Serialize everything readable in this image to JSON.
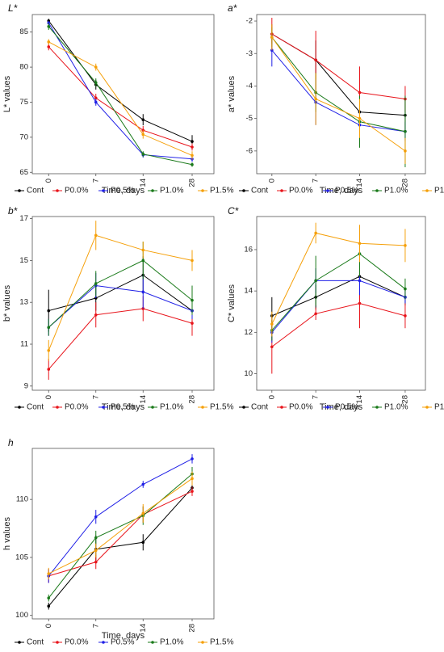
{
  "figure": {
    "x_categories": [
      "0",
      "7",
      "14",
      "28"
    ],
    "x_label": "Time, days",
    "legend": [
      {
        "name": "Cont",
        "color": "#000000"
      },
      {
        "name": "P0.0%",
        "color": "#e8141b"
      },
      {
        "name": "P0.5%",
        "color": "#1f1fe6"
      },
      {
        "name": "P1.0%",
        "color": "#1a7a1a"
      },
      {
        "name": "P1.5%",
        "color": "#f5a00a"
      }
    ]
  },
  "chart_data": [
    {
      "type": "line",
      "panel_label": "L*",
      "ylabel": "L* values",
      "xlabel": "Time, days",
      "categories": [
        "0",
        "7",
        "14",
        "28"
      ],
      "ylim": [
        64.8,
        87.5
      ],
      "yticks": [
        65,
        70,
        75,
        80,
        85
      ],
      "legend_position": "bottom",
      "grid": false,
      "series": [
        {
          "name": "Cont",
          "color": "#000000",
          "values": [
            86.6,
            77.5,
            72.5,
            69.4
          ],
          "errors": [
            0.3,
            0.7,
            0.8,
            0.9
          ]
        },
        {
          "name": "P0.0%",
          "color": "#e8141b",
          "values": [
            82.9,
            75.6,
            71.0,
            68.6
          ],
          "errors": [
            0.5,
            0.6,
            0.6,
            0.5
          ]
        },
        {
          "name": "P0.5%",
          "color": "#1f1fe6",
          "values": [
            86.3,
            75.0,
            67.5,
            66.9
          ],
          "errors": [
            0.3,
            0.5,
            0.4,
            0.4
          ]
        },
        {
          "name": "P1.0%",
          "color": "#1a7a1a",
          "values": [
            85.8,
            77.8,
            67.6,
            66.1
          ],
          "errors": [
            0.5,
            0.6,
            0.4,
            0.3
          ]
        },
        {
          "name": "P1.5%",
          "color": "#f5a00a",
          "values": [
            83.6,
            80.0,
            70.4,
            67.4
          ],
          "errors": [
            0.4,
            0.5,
            0.6,
            0.6
          ]
        }
      ]
    },
    {
      "type": "line",
      "panel_label": "a*",
      "ylabel": "a* values",
      "xlabel": "Time, days",
      "categories": [
        "0",
        "7",
        "14",
        "28"
      ],
      "ylim": [
        -6.7,
        -1.8
      ],
      "yticks": [
        -6,
        -5,
        -4,
        -3,
        -2
      ],
      "legend_position": "bottom",
      "grid": false,
      "series": [
        {
          "name": "Cont",
          "color": "#000000",
          "values": [
            -2.4,
            -3.2,
            -4.8,
            -4.9
          ],
          "errors": [
            0.3,
            0.6,
            0.7,
            0.5
          ]
        },
        {
          "name": "P0.0%",
          "color": "#e8141b",
          "values": [
            -2.4,
            -3.2,
            -4.2,
            -4.4
          ],
          "errors": [
            0.5,
            0.9,
            0.8,
            0.4
          ]
        },
        {
          "name": "P0.5%",
          "color": "#1f1fe6",
          "values": [
            -2.9,
            -4.5,
            -5.2,
            -5.4
          ],
          "errors": [
            0.5,
            0.7,
            0.5,
            0.3
          ]
        },
        {
          "name": "P1.0%",
          "color": "#1a7a1a",
          "values": [
            -2.5,
            -4.2,
            -5.1,
            -5.4
          ],
          "errors": [
            0.3,
            0.6,
            0.8,
            1.1
          ]
        },
        {
          "name": "P1.5%",
          "color": "#f5a00a",
          "values": [
            -2.5,
            -4.4,
            -5.0,
            -6.0
          ],
          "errors": [
            0.4,
            0.8,
            0.6,
            0.4
          ]
        }
      ]
    },
    {
      "type": "line",
      "panel_label": "b*",
      "ylabel": "b* values",
      "xlabel": "Time, days",
      "categories": [
        "0",
        "7",
        "14",
        "28"
      ],
      "ylim": [
        8.8,
        17.1
      ],
      "yticks": [
        9,
        11,
        13,
        15,
        17
      ],
      "legend_position": "bottom",
      "grid": false,
      "series": [
        {
          "name": "Cont",
          "color": "#000000",
          "values": [
            12.6,
            13.2,
            14.3,
            12.6
          ],
          "errors": [
            1.0,
            0.6,
            0.9,
            0.5
          ]
        },
        {
          "name": "P0.0%",
          "color": "#e8141b",
          "values": [
            9.8,
            12.4,
            12.7,
            12.0
          ],
          "errors": [
            0.5,
            0.6,
            0.6,
            0.6
          ]
        },
        {
          "name": "P0.5%",
          "color": "#1f1fe6",
          "values": [
            11.8,
            13.8,
            13.5,
            12.6
          ],
          "errors": [
            0.4,
            0.6,
            0.8,
            0.4
          ]
        },
        {
          "name": "P1.0%",
          "color": "#1a7a1a",
          "values": [
            11.8,
            13.9,
            15.0,
            13.1
          ],
          "errors": [
            0.4,
            0.6,
            0.9,
            0.7
          ]
        },
        {
          "name": "P1.5%",
          "color": "#f5a00a",
          "values": [
            10.7,
            16.2,
            15.5,
            15.0
          ],
          "errors": [
            0.5,
            0.7,
            0.4,
            0.5
          ]
        }
      ]
    },
    {
      "type": "line",
      "panel_label": "C*",
      "ylabel": "C* values",
      "xlabel": "Time, days",
      "categories": [
        "0",
        "7",
        "14",
        "28"
      ],
      "ylim": [
        9.2,
        17.6
      ],
      "yticks": [
        10,
        12,
        14,
        16
      ],
      "legend_position": "bottom",
      "grid": false,
      "series": [
        {
          "name": "Cont",
          "color": "#000000",
          "values": [
            12.8,
            13.7,
            14.7,
            13.7
          ],
          "errors": [
            0.9,
            0.6,
            0.8,
            0.4
          ]
        },
        {
          "name": "P0.0%",
          "color": "#e8141b",
          "values": [
            11.3,
            12.9,
            13.4,
            12.8
          ],
          "errors": [
            1.3,
            0.3,
            1.2,
            0.6
          ]
        },
        {
          "name": "P0.5%",
          "color": "#1f1fe6",
          "values": [
            12.0,
            14.5,
            14.5,
            13.7
          ],
          "errors": [
            0.5,
            0.6,
            0.7,
            0.3
          ]
        },
        {
          "name": "P1.0%",
          "color": "#1a7a1a",
          "values": [
            12.1,
            14.5,
            15.8,
            14.1
          ],
          "errors": [
            0.5,
            1.2,
            1.1,
            0.5
          ]
        },
        {
          "name": "P1.5%",
          "color": "#f5a00a",
          "values": [
            12.4,
            16.8,
            16.3,
            16.2
          ],
          "errors": [
            0.6,
            0.5,
            0.9,
            0.8
          ]
        }
      ]
    },
    {
      "type": "line",
      "panel_label": "h",
      "ylabel": "h values",
      "xlabel": "Time, days",
      "categories": [
        "0",
        "7",
        "14",
        "28"
      ],
      "ylim": [
        99.7,
        114.4
      ],
      "yticks": [
        100,
        105,
        110
      ],
      "legend_position": "bottom",
      "grid": false,
      "series": [
        {
          "name": "Cont",
          "color": "#000000",
          "values": [
            100.8,
            105.7,
            106.3,
            111.0
          ],
          "errors": [
            0.3,
            1.2,
            0.7,
            0.4
          ]
        },
        {
          "name": "P0.0%",
          "color": "#e8141b",
          "values": [
            103.4,
            104.6,
            108.7,
            110.7
          ],
          "errors": [
            0.6,
            0.6,
            0.7,
            0.4
          ]
        },
        {
          "name": "P0.5%",
          "color": "#1f1fe6",
          "values": [
            103.4,
            108.5,
            111.3,
            113.5
          ],
          "errors": [
            0.6,
            0.6,
            0.3,
            0.4
          ]
        },
        {
          "name": "P1.0%",
          "color": "#1a7a1a",
          "values": [
            101.5,
            106.7,
            108.6,
            112.2
          ],
          "errors": [
            0.3,
            0.6,
            0.8,
            0.6
          ]
        },
        {
          "name": "P1.5%",
          "color": "#f5a00a",
          "values": [
            103.6,
            105.6,
            108.8,
            111.8
          ],
          "errors": [
            0.5,
            0.6,
            0.8,
            0.6
          ]
        }
      ]
    }
  ]
}
